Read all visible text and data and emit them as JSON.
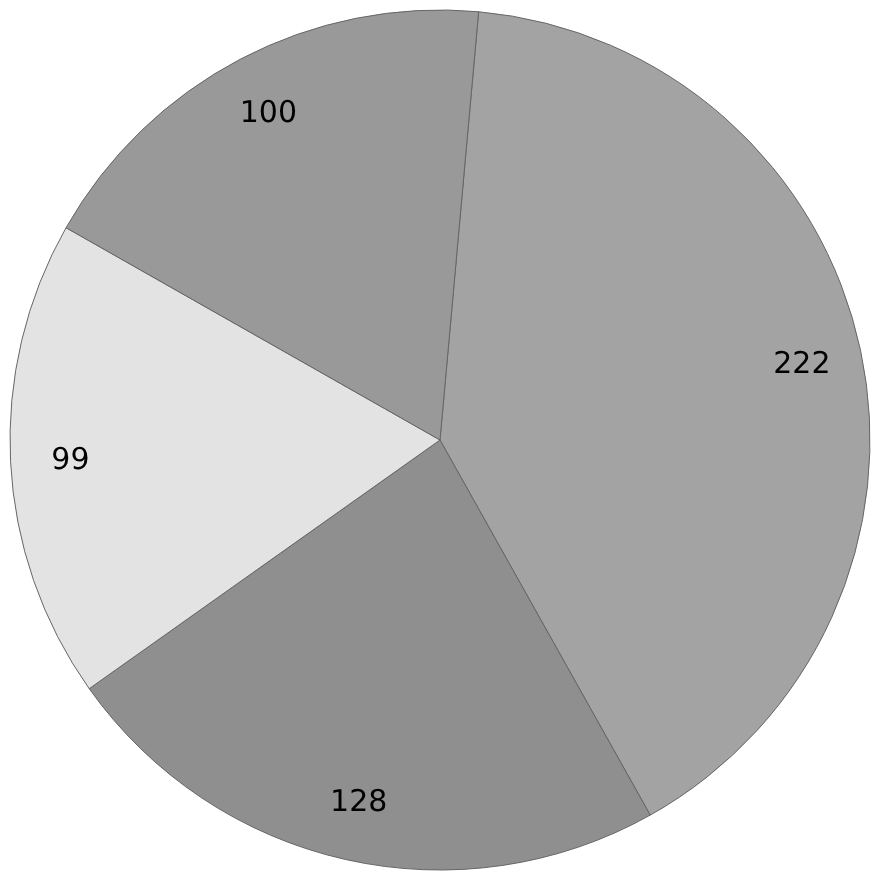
{
  "chart_data": {
    "type": "pie",
    "categories": [
      null,
      null,
      null,
      null
    ],
    "values": [
      222,
      128,
      99,
      100
    ],
    "colors": [
      "#a3a3a3",
      "#8f8f8f",
      "#e3e3e3",
      "#999999"
    ],
    "data_labels": true
  }
}
